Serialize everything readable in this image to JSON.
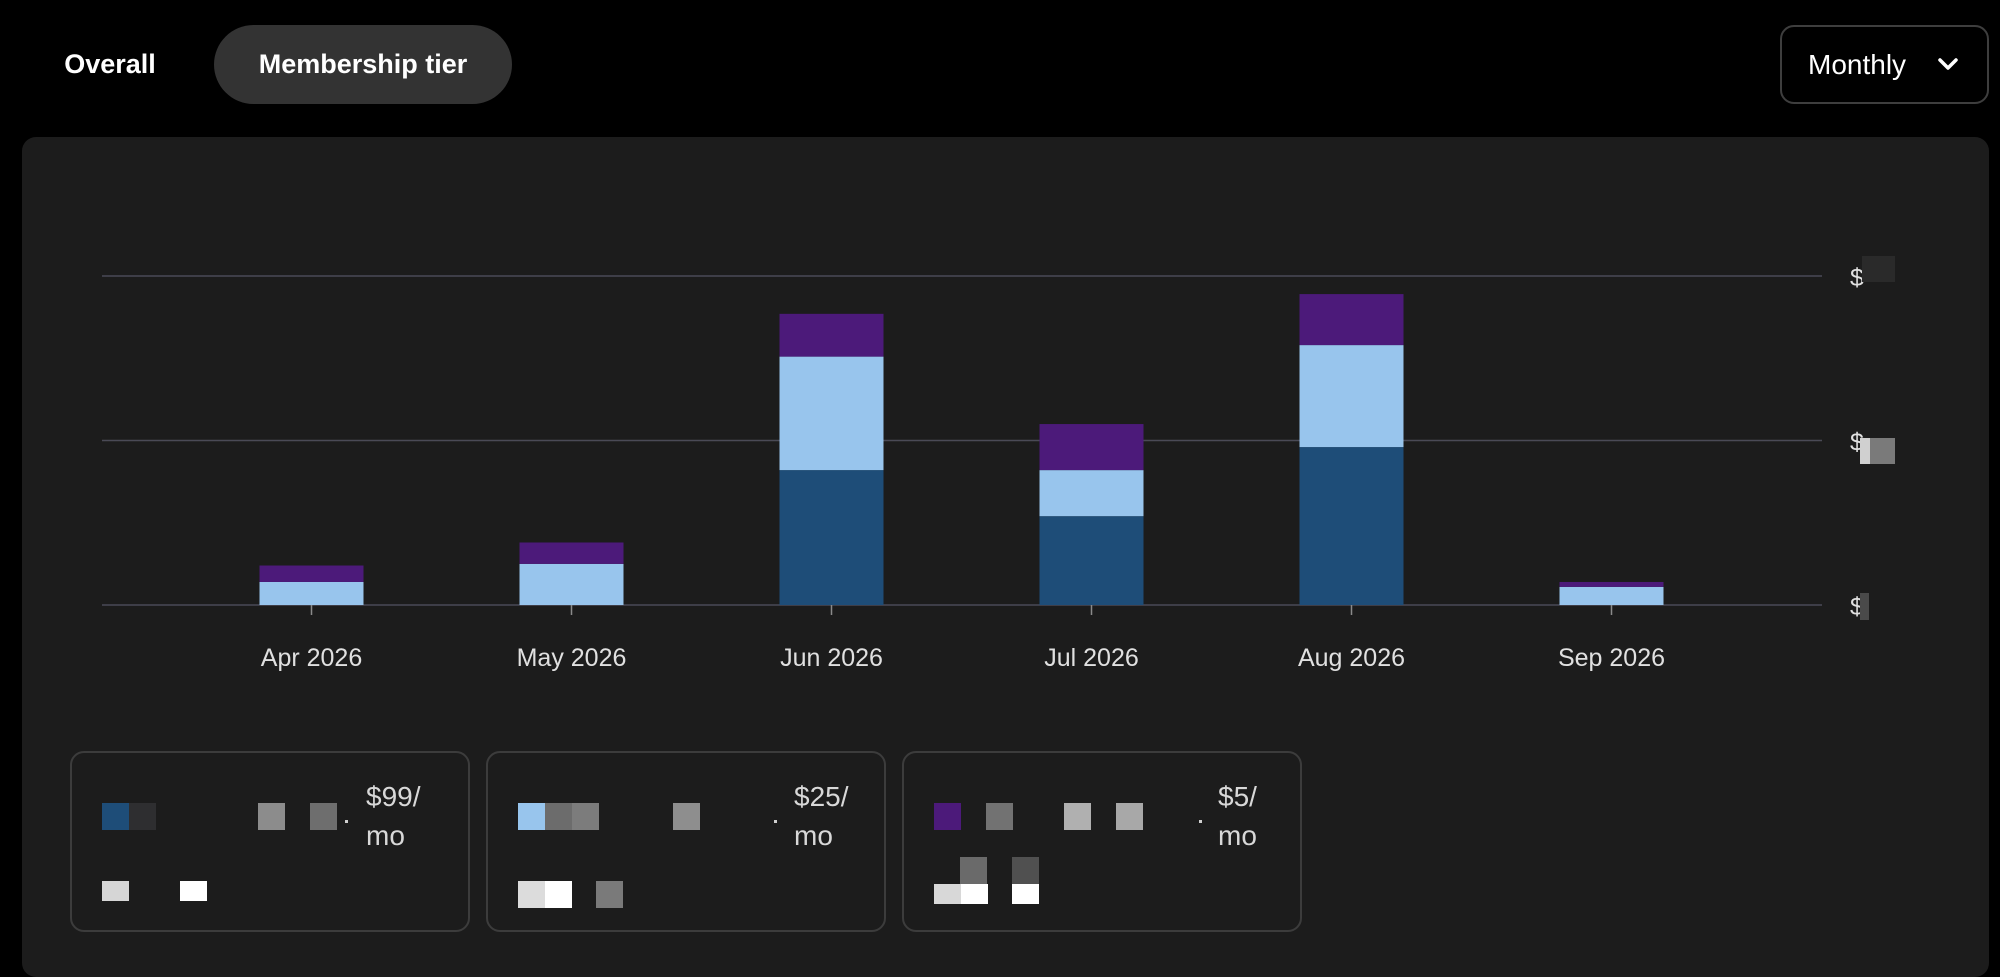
{
  "tabs": [
    {
      "label": "Overall",
      "active": false
    },
    {
      "label": "Membership tier",
      "active": true
    }
  ],
  "period_select": {
    "value": "Monthly",
    "icon": "chevron-down-icon"
  },
  "colors": {
    "tier_99": "#1e4d78",
    "tier_25": "#98c5ed",
    "tier_5": "#4c1a7a",
    "gridline": "#4a4a56",
    "axis_text": "#e0e0e0"
  },
  "chart_data": {
    "type": "bar",
    "stacked": true,
    "categories": [
      "Apr 2026",
      "May 2026",
      "Jun 2026",
      "Jul 2026",
      "Aug 2026",
      "Sep 2026"
    ],
    "series": [
      {
        "key": "tier_99",
        "values": [
          0,
          0,
          41,
          27,
          48,
          0
        ]
      },
      {
        "key": "tier_25",
        "values": [
          7,
          12.5,
          34.5,
          14,
          31,
          5.5
        ]
      },
      {
        "key": "tier_5",
        "values": [
          5,
          6.5,
          13,
          14,
          15.5,
          1.5
        ]
      }
    ],
    "ylim": [
      0,
      100
    ],
    "yaxis_position": "right",
    "y_tick_values": [
      0,
      50,
      100
    ],
    "y_tick_labels": [
      "$",
      "$",
      "$"
    ],
    "grid": true,
    "legend_placement": "bottom-left"
  },
  "legend": [
    {
      "key": "tier_99",
      "price": "$99/",
      "unit": "mo"
    },
    {
      "key": "tier_25",
      "price": "$25/",
      "unit": "mo"
    },
    {
      "key": "tier_5",
      "price": "$5/",
      "unit": "mo"
    }
  ]
}
